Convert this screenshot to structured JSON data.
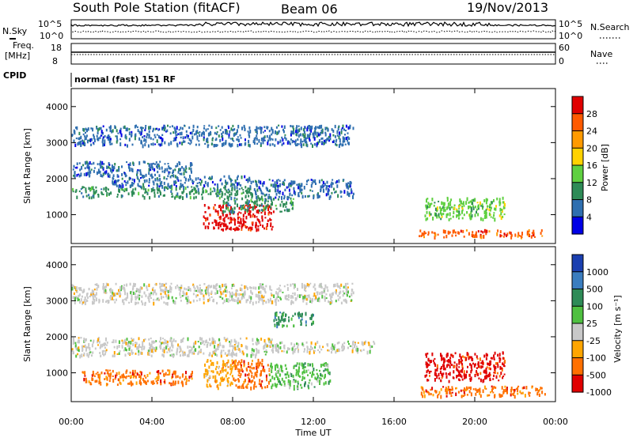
{
  "chart_data": [
    {
      "panel": "header",
      "title": "South Pole Station (fitACF)",
      "beam": "Beam 06",
      "date": "19/Nov/2013",
      "nsky_label": "N.Sky",
      "nsky_ticks": [
        "10^5",
        "10^0"
      ],
      "nsearch_label": "N.Search",
      "nsearch_ticks": [
        "10^5",
        "10^0"
      ],
      "freq_label": "Freq.",
      "freq_unit": "[MHz]",
      "freq_ticks": [
        "18",
        "8"
      ],
      "nave_label": "Nave",
      "nave_ticks": [
        "60",
        "0"
      ],
      "cpid_label": "CPID",
      "cpid_value": "normal (fast) 151 RF"
    },
    {
      "panel": "power",
      "type": "heatmap",
      "ylabel": "Slant Range [km]",
      "ylim": [
        200,
        4500
      ],
      "yticks": [
        "1000",
        "2000",
        "3000",
        "4000"
      ],
      "xlim": [
        0,
        24
      ],
      "colorbar_label": "Power [dB]",
      "colorbar_ticks": [
        "28",
        "24",
        "20",
        "16",
        "12",
        "8",
        "4"
      ],
      "colorbar_colors": [
        "#e00000",
        "#ff5a00",
        "#ff9a00",
        "#ffd200",
        "#5fd040",
        "#2e8b57",
        "#2f6fb0",
        "#0000e6"
      ],
      "regions": [
        {
          "x": [
            0.0,
            14.0
          ],
          "y": [
            2950,
            3500
          ],
          "level": 6
        },
        {
          "x": [
            0.0,
            9.0
          ],
          "y": [
            1500,
            1800
          ],
          "level": 5
        },
        {
          "x": [
            2.0,
            9.0
          ],
          "y": [
            1800,
            2100
          ],
          "level": 6
        },
        {
          "x": [
            6.5,
            10.0
          ],
          "y": [
            600,
            1300
          ],
          "level": 0
        },
        {
          "x": [
            7.5,
            11.0
          ],
          "y": [
            1100,
            1500
          ],
          "level": 5
        },
        {
          "x": [
            9.0,
            14.0
          ],
          "y": [
            1500,
            2000
          ],
          "level": 6
        },
        {
          "x": [
            17.2,
            23.5
          ],
          "y": [
            400,
            600
          ],
          "level": 1
        },
        {
          "x": [
            17.5,
            21.5
          ],
          "y": [
            900,
            1500
          ],
          "level": 4
        },
        {
          "x": [
            0.0,
            6.0
          ],
          "y": [
            2100,
            2500
          ],
          "level": 6
        }
      ]
    },
    {
      "panel": "velocity",
      "type": "heatmap",
      "ylabel": "Slant Range [km]",
      "ylim": [
        200,
        4500
      ],
      "yticks": [
        "1000",
        "2000",
        "3000",
        "4000"
      ],
      "xlim": [
        0,
        24
      ],
      "xlabel": "Time UT",
      "xticks": [
        "00:00",
        "04:00",
        "08:00",
        "12:00",
        "16:00",
        "20:00",
        "00:00"
      ],
      "colorbar_label": "Velocity [m s⁻¹]",
      "colorbar_ticks": [
        "1000",
        "500",
        "100",
        "25",
        "-25",
        "-100",
        "-500",
        "-1000"
      ],
      "colorbar_colors": [
        "#1a3fb0",
        "#3a7dbf",
        "#2e8b57",
        "#4fc040",
        "#c8c8c8",
        "#ffa500",
        "#ff7000",
        "#e00000"
      ],
      "regions": [
        {
          "x": [
            0.0,
            14.0
          ],
          "y": [
            2950,
            3500
          ],
          "level": 4
        },
        {
          "x": [
            0.0,
            10.0
          ],
          "y": [
            1500,
            2000
          ],
          "level": 4
        },
        {
          "x": [
            10.0,
            15.0
          ],
          "y": [
            1600,
            1900
          ],
          "level": 4
        },
        {
          "x": [
            0.5,
            6.0
          ],
          "y": [
            700,
            1100
          ],
          "level": 6
        },
        {
          "x": [
            6.5,
            8.0
          ],
          "y": [
            600,
            1400
          ],
          "level": 5
        },
        {
          "x": [
            8.0,
            9.8
          ],
          "y": [
            600,
            1400
          ],
          "level": 6
        },
        {
          "x": [
            9.8,
            12.8
          ],
          "y": [
            600,
            1300
          ],
          "level": 3
        },
        {
          "x": [
            10.0,
            12.0
          ],
          "y": [
            2300,
            2700
          ],
          "level": 2
        },
        {
          "x": [
            17.2,
            23.5
          ],
          "y": [
            380,
            650
          ],
          "level": 6
        },
        {
          "x": [
            17.5,
            21.5
          ],
          "y": [
            800,
            1600
          ],
          "level": 7
        }
      ]
    }
  ]
}
